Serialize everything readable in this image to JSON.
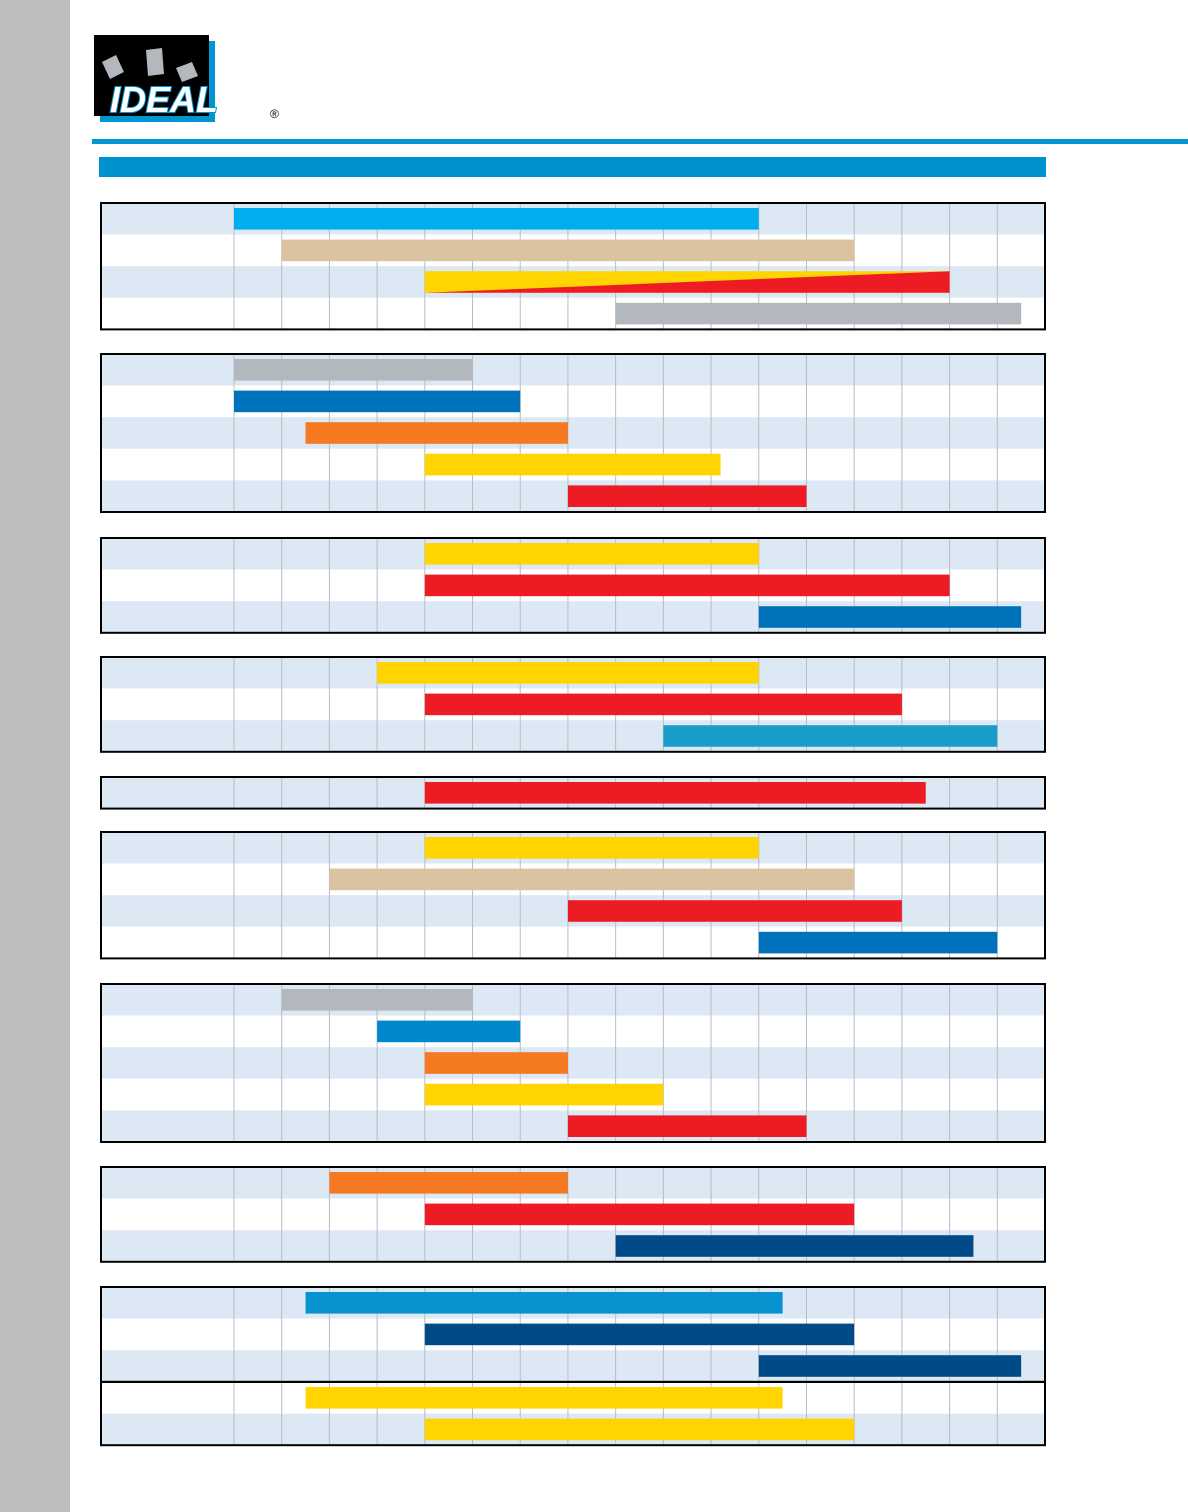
{
  "logo": {
    "text": "IDEAL",
    "mark": "®"
  },
  "chart_data": {
    "type": "range-bar",
    "xlim": [
      0,
      17
    ],
    "xticks": [
      0,
      1,
      2,
      3,
      4,
      5,
      6,
      7,
      8,
      9,
      10,
      11,
      12,
      13,
      14,
      15,
      16,
      17
    ],
    "grid": true,
    "groups": [
      {
        "bars": [
          {
            "start": 0,
            "end": 11,
            "color": "#00aeef"
          },
          {
            "start": 1,
            "end": 13,
            "color": "#d9c3a0"
          },
          {
            "start": 4,
            "end": 15,
            "color": "#ffd400",
            "color2": "#ed1c24"
          },
          {
            "start": 8,
            "end": 16.5,
            "color": "#b3b8be"
          }
        ]
      },
      {
        "bars": [
          {
            "start": 0,
            "end": 5,
            "color": "#b3b8be"
          },
          {
            "start": 0,
            "end": 6,
            "color": "#0072bc"
          },
          {
            "start": 1.5,
            "end": 7,
            "color": "#f47920"
          },
          {
            "start": 4,
            "end": 10.2,
            "color": "#ffd400"
          },
          {
            "start": 7,
            "end": 12,
            "color": "#ed1c24"
          }
        ]
      },
      {
        "bars": [
          {
            "start": 4,
            "end": 11,
            "color": "#ffd400"
          },
          {
            "start": 4,
            "end": 15,
            "color": "#ed1c24"
          },
          {
            "start": 11,
            "end": 16.5,
            "color": "#0072bc"
          }
        ]
      },
      {
        "bars": [
          {
            "start": 3,
            "end": 11,
            "color": "#ffd400"
          },
          {
            "start": 4,
            "end": 14,
            "color": "#ed1c24"
          },
          {
            "start": 9,
            "end": 16,
            "color": "#1b9dcb"
          }
        ]
      },
      {
        "bars": [
          {
            "start": 4,
            "end": 14.5,
            "color": "#ed1c24"
          }
        ]
      },
      {
        "bars": [
          {
            "start": 4,
            "end": 11,
            "color": "#ffd400"
          },
          {
            "start": 2,
            "end": 13,
            "color": "#d9c3a0"
          },
          {
            "start": 7,
            "end": 14,
            "color": "#ed1c24"
          },
          {
            "start": 11,
            "end": 16,
            "color": "#0072bc"
          }
        ]
      },
      {
        "bars": [
          {
            "start": 1,
            "end": 5,
            "color": "#b3b8be"
          },
          {
            "start": 3,
            "end": 6,
            "color": "#0088cc"
          },
          {
            "start": 4,
            "end": 7,
            "color": "#f47920"
          },
          {
            "start": 4,
            "end": 9,
            "color": "#ffd400"
          },
          {
            "start": 7,
            "end": 12,
            "color": "#ed1c24"
          }
        ]
      },
      {
        "bars": [
          {
            "start": 2,
            "end": 7,
            "color": "#f47920"
          },
          {
            "start": 4,
            "end": 13,
            "color": "#ed1c24"
          },
          {
            "start": 8,
            "end": 15.5,
            "color": "#004b87"
          }
        ]
      },
      {
        "bars": [
          {
            "start": 1.5,
            "end": 11.5,
            "color": "#0892d0"
          },
          {
            "start": 4,
            "end": 13,
            "color": "#004b87"
          },
          {
            "start": 11,
            "end": 16.5,
            "color": "#004b87"
          }
        ]
      },
      {
        "bars": [
          {
            "start": 1.5,
            "end": 11.5,
            "color": "#ffd400"
          },
          {
            "start": 4,
            "end": 13,
            "color": "#ffd400"
          }
        ]
      }
    ]
  }
}
